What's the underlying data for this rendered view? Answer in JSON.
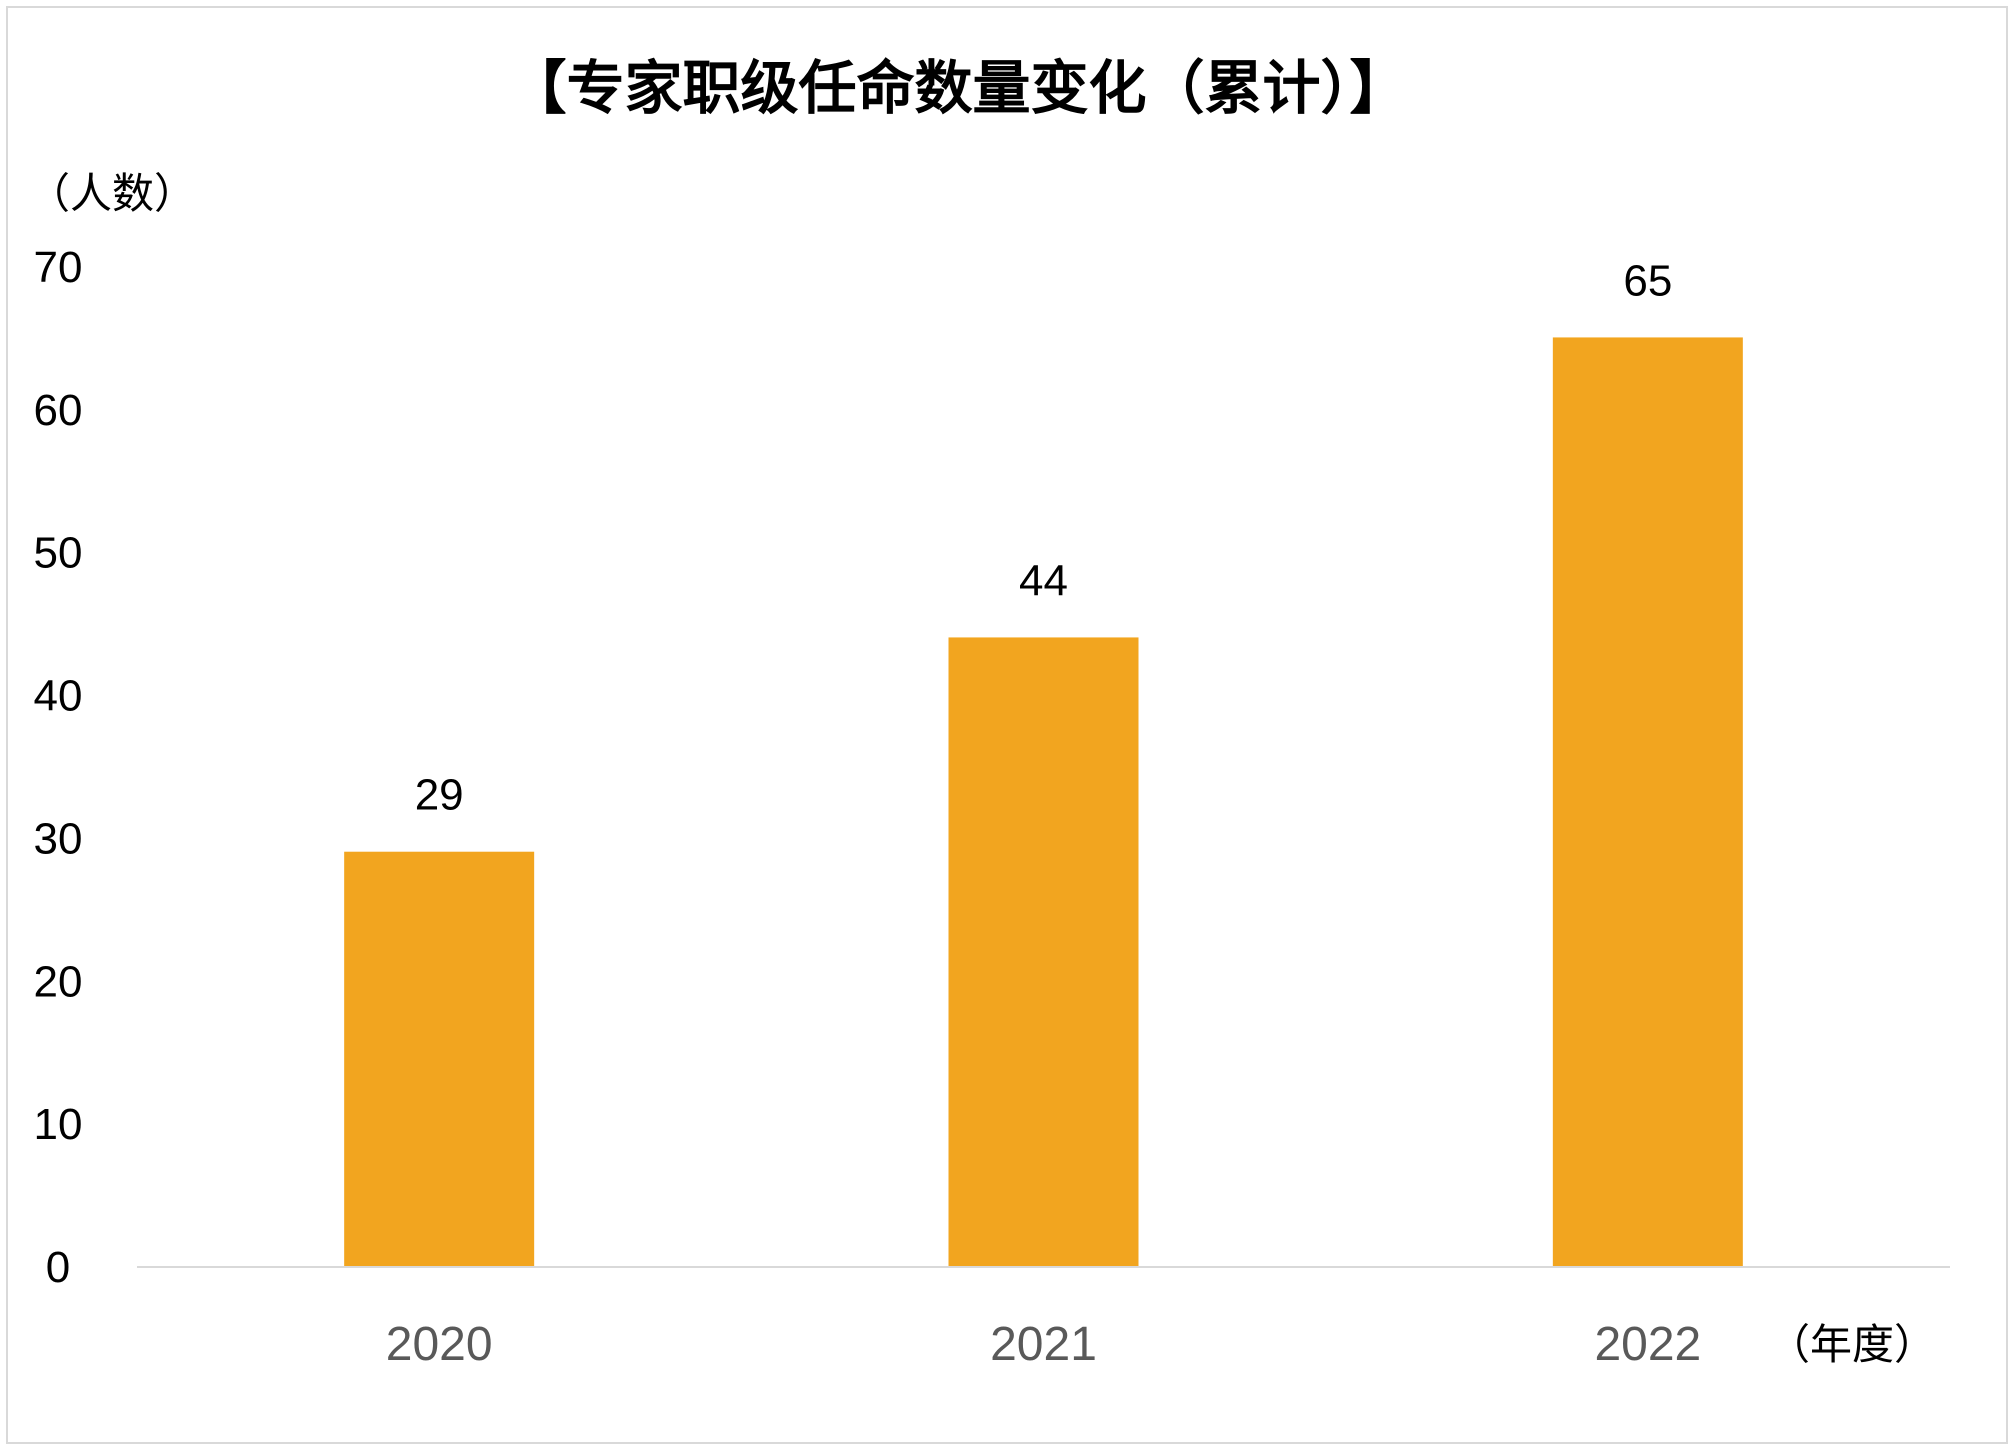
{
  "chart_data": {
    "type": "bar",
    "title": "【专家职级任命数量变化（累计）】",
    "ylabel": "（人数）",
    "xlabel": "（年度）",
    "categories": [
      "2020",
      "2021",
      "2022"
    ],
    "values": [
      29,
      44,
      65
    ],
    "data_labels": [
      "29",
      "44",
      "65"
    ],
    "ylim": [
      0,
      70
    ],
    "yticks": [
      0,
      10,
      20,
      30,
      40,
      50,
      60,
      70
    ],
    "grid": false,
    "bar_color": "#F2A51F",
    "axis_color": "#d9d9d9"
  }
}
